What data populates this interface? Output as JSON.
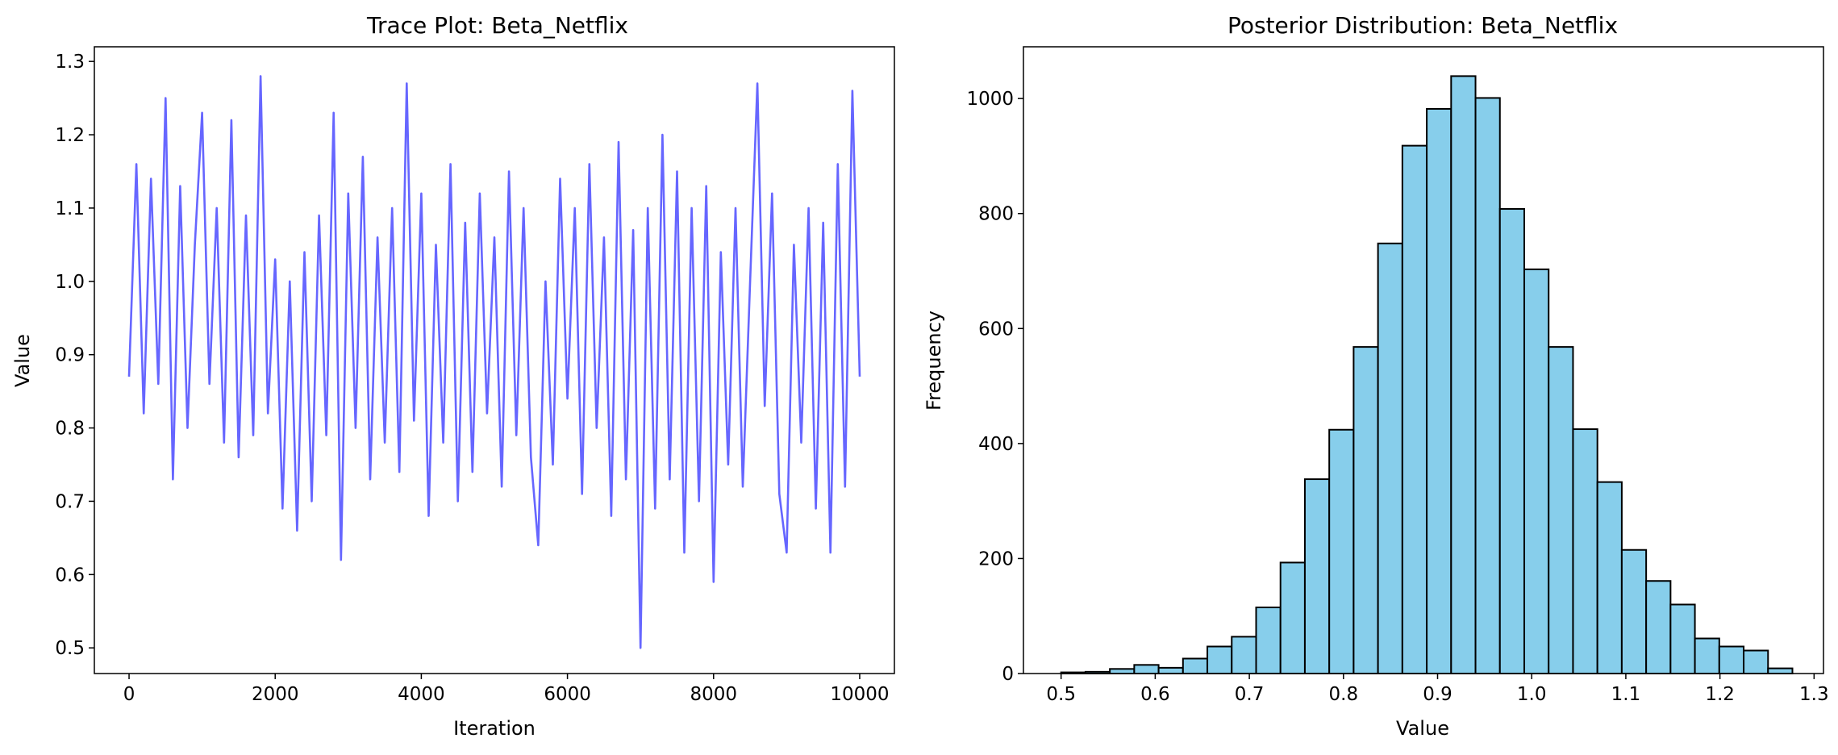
{
  "chart_data": [
    {
      "type": "line",
      "title": "Trace Plot: Beta_Netflix",
      "xlabel": "Iteration",
      "ylabel": "Value",
      "xlim": [
        -475,
        10475
      ],
      "ylim": [
        0.465,
        1.32
      ],
      "xticks": [
        0,
        2000,
        4000,
        6000,
        8000,
        10000
      ],
      "xtick_labels": [
        "0",
        "2000",
        "4000",
        "6000",
        "8000",
        "10000"
      ],
      "yticks": [
        0.5,
        0.6,
        0.7,
        0.8,
        0.9,
        1.0,
        1.1,
        1.2,
        1.3
      ],
      "ytick_labels": [
        "0.5",
        "0.6",
        "0.7",
        "0.8",
        "0.9",
        "1.0",
        "1.1",
        "1.2",
        "1.3"
      ],
      "grid": false,
      "colors": {
        "line": "#6666ff"
      },
      "series": [
        {
          "x": [
            0,
            100,
            200,
            300,
            400,
            500,
            600,
            700,
            800,
            900,
            1000,
            1100,
            1200,
            1300,
            1400,
            1500,
            1600,
            1700,
            1800,
            1900,
            2000,
            2100,
            2200,
            2300,
            2400,
            2500,
            2600,
            2700,
            2800,
            2900,
            3000,
            3100,
            3200,
            3300,
            3400,
            3500,
            3600,
            3700,
            3800,
            3900,
            4000,
            4100,
            4200,
            4300,
            4400,
            4500,
            4600,
            4700,
            4800,
            4900,
            5000,
            5100,
            5200,
            5300,
            5400,
            5500,
            5600,
            5700,
            5800,
            5900,
            6000,
            6100,
            6200,
            6300,
            6400,
            6500,
            6600,
            6700,
            6800,
            6900,
            7000,
            7100,
            7200,
            7300,
            7400,
            7500,
            7600,
            7700,
            7800,
            7900,
            8000,
            8100,
            8200,
            8300,
            8400,
            8500,
            8600,
            8700,
            8800,
            8900,
            9000,
            9100,
            9200,
            9300,
            9400,
            9500,
            9600,
            9700,
            9800,
            9900,
            10000
          ],
          "values": [
            0.87,
            1.16,
            0.82,
            1.14,
            0.86,
            1.25,
            0.73,
            1.13,
            0.8,
            1.05,
            1.23,
            0.86,
            1.1,
            0.78,
            1.22,
            0.76,
            1.09,
            0.79,
            1.28,
            0.82,
            1.03,
            0.69,
            1.0,
            0.66,
            1.04,
            0.7,
            1.09,
            0.79,
            1.23,
            0.62,
            1.12,
            0.8,
            1.17,
            0.73,
            1.06,
            0.78,
            1.1,
            0.74,
            1.27,
            0.81,
            1.12,
            0.68,
            1.05,
            0.78,
            1.16,
            0.7,
            1.08,
            0.74,
            1.12,
            0.82,
            1.06,
            0.72,
            1.15,
            0.79,
            1.1,
            0.76,
            0.64,
            1.0,
            0.75,
            1.14,
            0.84,
            1.1,
            0.71,
            1.16,
            0.8,
            1.06,
            0.68,
            1.19,
            0.73,
            1.07,
            0.5,
            1.1,
            0.69,
            1.2,
            0.73,
            1.15,
            0.63,
            1.1,
            0.7,
            1.13,
            0.59,
            1.04,
            0.75,
            1.1,
            0.72,
            1.0,
            1.27,
            0.83,
            1.12,
            0.71,
            0.63,
            1.05,
            0.78,
            1.1,
            0.69,
            1.08,
            0.63,
            1.16,
            0.72,
            1.26,
            0.87
          ]
        }
      ]
    },
    {
      "type": "bar",
      "title": "Posterior Distribution: Beta_Netflix",
      "xlabel": "Value",
      "ylabel": "Frequency",
      "xlim": [
        0.46,
        1.31
      ],
      "ylim": [
        0,
        1090
      ],
      "xticks": [
        0.5,
        0.6,
        0.7,
        0.8,
        0.9,
        1.0,
        1.1,
        1.2,
        1.3
      ],
      "xtick_labels": [
        "0.5",
        "0.6",
        "0.7",
        "0.8",
        "0.9",
        "1.0",
        "1.1",
        "1.2",
        "1.3"
      ],
      "yticks": [
        0,
        200,
        400,
        600,
        800,
        1000
      ],
      "ytick_labels": [
        "0",
        "200",
        "400",
        "600",
        "800",
        "1000"
      ],
      "grid": false,
      "colors": {
        "fill": "#87ceeb",
        "edge": "#000000"
      },
      "bin_edges": [
        0.5,
        0.5259,
        0.5518,
        0.5777,
        0.6036,
        0.6295,
        0.6554,
        0.6813,
        0.7072,
        0.7331,
        0.759,
        0.7849,
        0.8108,
        0.8367,
        0.8626,
        0.8885,
        0.9144,
        0.9403,
        0.9662,
        0.9921,
        1.018,
        1.0439,
        1.0698,
        1.0957,
        1.1216,
        1.1475,
        1.1734,
        1.1993,
        1.2252,
        1.2511,
        1.277
      ],
      "values": [
        2,
        3,
        8,
        15,
        10,
        26,
        47,
        64,
        115,
        193,
        338,
        424,
        568,
        748,
        918,
        982,
        1039,
        1001,
        808,
        703,
        568,
        425,
        333,
        215,
        161,
        120,
        61,
        47,
        40,
        9
      ]
    }
  ]
}
